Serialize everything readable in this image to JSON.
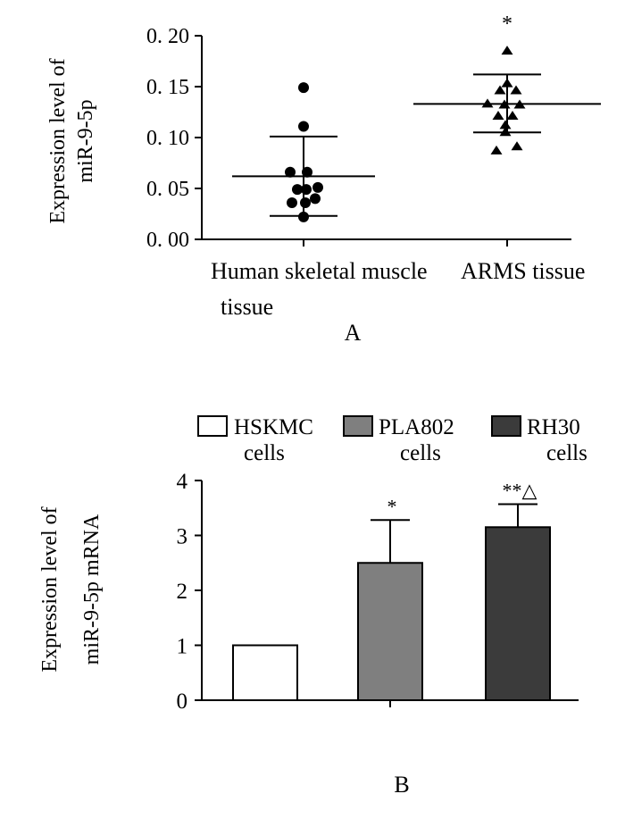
{
  "colors": {
    "axis": "#000000",
    "hskmc": "#ffffff",
    "pla802": "#7f7f7f",
    "rh30": "#3b3b3b"
  },
  "chart_data": [
    {
      "type": "scatter",
      "panel": "A",
      "panel_label": "A",
      "ylabel_line1": "Expression level of",
      "ylabel_line2": "miR-9-5p",
      "ylim": [
        0,
        0.2
      ],
      "ytick_labels": [
        "0. 00",
        "0. 05",
        "0. 10",
        "0. 15",
        "0. 20"
      ],
      "ytick_values": [
        0,
        0.05,
        0.1,
        0.15,
        0.2
      ],
      "categories": [
        {
          "line1": "Human skeletal muscle",
          "line2": "tissue"
        },
        {
          "line1": "ARMS tissue",
          "line2": ""
        }
      ],
      "series": [
        {
          "name": "Human skeletal muscle tissue",
          "marker": "circle",
          "points": [
            {
              "x": 0.0,
              "y": 0.149
            },
            {
              "x": 0.0,
              "y": 0.111
            },
            {
              "x": -0.15,
              "y": 0.066
            },
            {
              "x": 0.04,
              "y": 0.066
            },
            {
              "x": -0.07,
              "y": 0.049
            },
            {
              "x": 0.03,
              "y": 0.049
            },
            {
              "x": 0.16,
              "y": 0.051
            },
            {
              "x": -0.13,
              "y": 0.036
            },
            {
              "x": 0.02,
              "y": 0.036
            },
            {
              "x": 0.13,
              "y": 0.04
            },
            {
              "x": 0.0,
              "y": 0.022
            }
          ],
          "mean": 0.062,
          "sd_upper": 0.101,
          "sd_lower": 0.023
        },
        {
          "name": "ARMS tissue",
          "marker": "triangle",
          "points": [
            {
              "x": 0.0,
              "y": 0.185
            },
            {
              "x": 0.0,
              "y": 0.153
            },
            {
              "x": -0.08,
              "y": 0.146
            },
            {
              "x": 0.1,
              "y": 0.146
            },
            {
              "x": -0.22,
              "y": 0.133
            },
            {
              "x": -0.03,
              "y": 0.132
            },
            {
              "x": 0.14,
              "y": 0.132
            },
            {
              "x": -0.1,
              "y": 0.121
            },
            {
              "x": 0.06,
              "y": 0.121
            },
            {
              "x": -0.02,
              "y": 0.112
            },
            {
              "x": -0.02,
              "y": 0.105
            },
            {
              "x": -0.12,
              "y": 0.087
            },
            {
              "x": 0.11,
              "y": 0.091
            }
          ],
          "mean": 0.133,
          "sd_upper": 0.162,
          "sd_lower": 0.105,
          "annotation": "*"
        }
      ]
    },
    {
      "type": "bar",
      "panel": "B",
      "panel_label": "B",
      "ylabel_line1": "Expression level of",
      "ylabel_line2": "miR-9-5p mRNA",
      "ylim": [
        0,
        4
      ],
      "ytick_labels": [
        "0",
        "1",
        "2",
        "3",
        "4"
      ],
      "ytick_values": [
        0,
        1,
        2,
        3,
        4
      ],
      "legend": [
        {
          "line1": "HSKMC",
          "line2": "cells",
          "color_key": "hskmc"
        },
        {
          "line1": "PLA802",
          "line2": "cells",
          "color_key": "pla802"
        },
        {
          "line1": "RH30",
          "line2": "cells",
          "color_key": "rh30"
        }
      ],
      "categories": [
        "HSKMC cells",
        "PLA802 cells",
        "RH30 cells"
      ],
      "values": [
        1.0,
        2.5,
        3.15
      ],
      "errors": [
        0,
        0.78,
        0.42
      ],
      "annotations": [
        "",
        "*",
        "**△"
      ]
    }
  ]
}
